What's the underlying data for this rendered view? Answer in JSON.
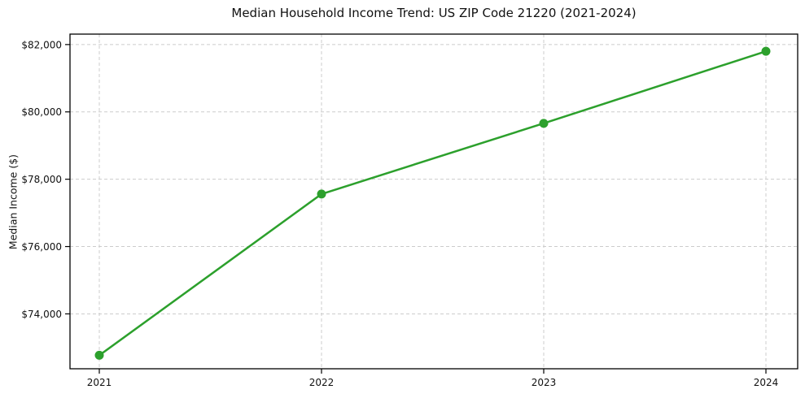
{
  "chart_data": {
    "type": "line",
    "title": "Median Household Income Trend: US ZIP Code 21220 (2021-2024)",
    "xlabel": "",
    "ylabel": "Median Income ($)",
    "categories": [
      "2021",
      "2022",
      "2023",
      "2024"
    ],
    "values": [
      72770,
      77560,
      79660,
      81800
    ],
    "ylim": [
      72370,
      82310
    ],
    "yticks": [
      74000,
      76000,
      78000,
      80000,
      82000
    ],
    "ytick_labels": [
      "$74,000",
      "$76,000",
      "$78,000",
      "$80,000",
      "$82,000"
    ],
    "grid": true,
    "grid_style": "dashed",
    "grid_color": "#cccccc",
    "line_color": "#2ca02c",
    "marker": "circle",
    "spine_color": "#000000",
    "text_color": "#111111",
    "background": "#ffffff",
    "legend": false
  }
}
